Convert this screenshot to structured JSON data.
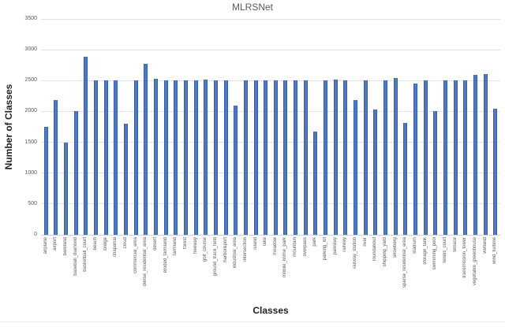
{
  "chart_data": {
    "type": "bar",
    "title": "MLRSNet",
    "xlabel": "Classes",
    "ylabel": "Number of Classes",
    "ylim": [
      0,
      3500
    ],
    "ytick_step": 500,
    "grid": true,
    "legend_position": "none",
    "bar_color": "#4472c4",
    "gridline_color": "#e3e3e3",
    "title_color": "#595959",
    "categories": [
      "airplane",
      "airport",
      "bareland",
      "baseball_diamond",
      "basketball_court",
      "beach",
      "bridge",
      "chaparral",
      "cloud",
      "commercial_area",
      "dense_residential_area",
      "desert",
      "eroded_farmland",
      "farmland",
      "forest",
      "freeway",
      "golf_course",
      "ground_track_field",
      "harbor&port",
      "industrial_area",
      "intersection",
      "island",
      "lake",
      "meadow",
      "mobile_home_park",
      "mountain",
      "overpass",
      "park",
      "parking_lot",
      "parkway",
      "railway",
      "railway_station",
      "river",
      "roundabout",
      "shipping_yard",
      "snowberg",
      "sparse_residential_area",
      "stadium",
      "storage_tank",
      "swimming_pool",
      "tennis_court",
      "terrace",
      "transmission_tower",
      "vegetable_greenhouse",
      "wetland",
      "wind_turbine"
    ],
    "values": [
      1750,
      2180,
      1500,
      2000,
      2890,
      2500,
      2500,
      2500,
      1800,
      2500,
      2770,
      2530,
      2500,
      2500,
      2500,
      2500,
      2520,
      2500,
      2500,
      2100,
      2500,
      2500,
      2500,
      2500,
      2500,
      2500,
      2500,
      1680,
      2500,
      2520,
      2500,
      2180,
      2500,
      2030,
      2500,
      2540,
      1820,
      2450,
      2500,
      2000,
      2500,
      2500,
      2500,
      2590,
      2610,
      2050
    ],
    "ytick_labels": [
      "0",
      "500",
      "1000",
      "1500",
      "2000",
      "2500",
      "3000",
      "3500"
    ]
  }
}
